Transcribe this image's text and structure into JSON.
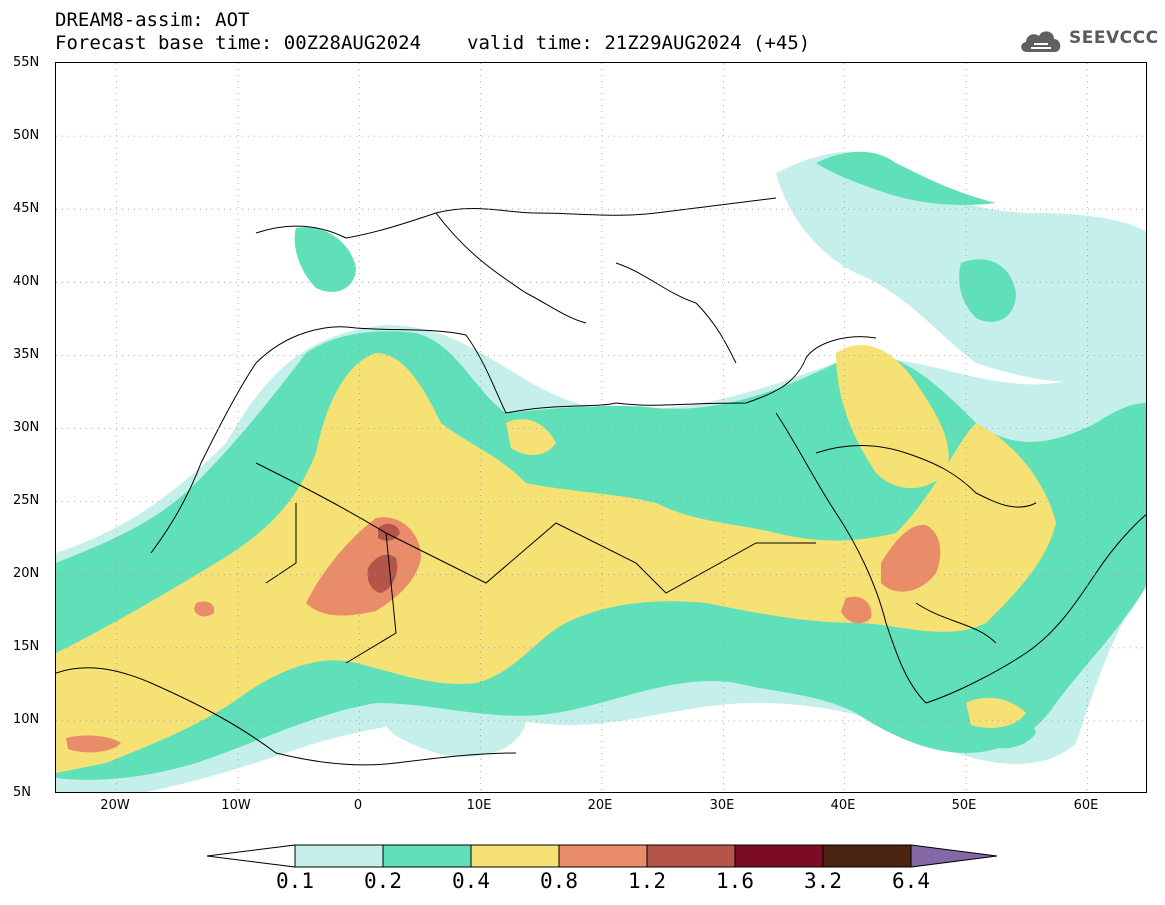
{
  "header": {
    "title": "DREAM8-assim: AOT",
    "base_time": "Forecast base time: 00Z28AUG2024",
    "valid_time": "valid time: 21Z29AUG2024 (+45)"
  },
  "logo": {
    "text": "SEEVCCC",
    "icon": "cloud-icon"
  },
  "map": {
    "variable": "AOT",
    "extent": {
      "lon": [
        -25,
        65
      ],
      "lat": [
        5,
        55
      ]
    },
    "lat_ticks": [
      "55N",
      "50N",
      "45N",
      "40N",
      "35N",
      "30N",
      "25N",
      "20N",
      "15N",
      "10N",
      "5N"
    ],
    "lon_ticks": [
      "20W",
      "10W",
      "0",
      "10E",
      "20E",
      "30E",
      "40E",
      "50E",
      "60E"
    ],
    "gridlines": true
  },
  "colorbar": {
    "levels": [
      "0.1",
      "0.2",
      "0.4",
      "0.8",
      "1.2",
      "1.6",
      "3.2",
      "6.4"
    ],
    "colors": [
      "#c5efea",
      "#5fe0b9",
      "#f6e274",
      "#e88c6a",
      "#b55448",
      "#7c0b24",
      "#4a2612",
      "#8468a6"
    ],
    "under_color": "#ffffff",
    "over_color": "#8468a6"
  }
}
